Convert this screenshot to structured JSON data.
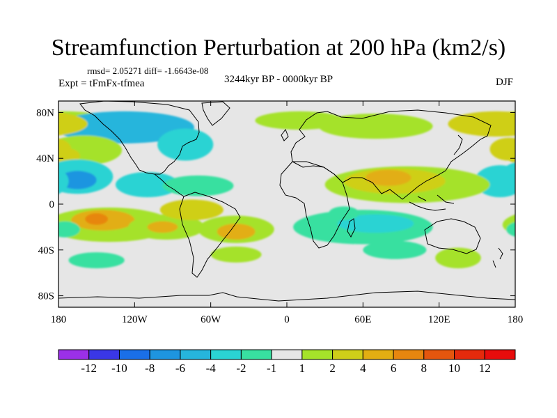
{
  "title": "Streamfunction Perturbation at 200 hPa (km2/s)",
  "stats": "rmsd= 2.05271 diff= -1.6643e-08",
  "experiment": "Expt = tFmFx-tfmea",
  "period": "3244kyr BP - 0000kyr BP",
  "season": "DJF",
  "lat_labels": [
    "80N",
    "40N",
    "0",
    "40S",
    "80S"
  ],
  "lon_labels": [
    "180",
    "120W",
    "60W",
    "0",
    "60E",
    "120E",
    "180"
  ],
  "colorbar": {
    "labels": [
      "-12",
      "-10",
      "-8",
      "-6",
      "-4",
      "-2",
      "-1",
      "1",
      "2",
      "4",
      "6",
      "8",
      "10",
      "12"
    ],
    "colors": [
      "#9b30e8",
      "#3a37e6",
      "#1a6fe8",
      "#1e95e0",
      "#26b5dc",
      "#2ad3d3",
      "#38e0a0",
      "#e6e6e6",
      "#a5e22a",
      "#cfcf19",
      "#e2ae12",
      "#e7860f",
      "#e5560e",
      "#e52a0c",
      "#e80c0c"
    ]
  },
  "anomalies": [
    {
      "lon": -175,
      "lat": 72,
      "rx": 38,
      "ry": 9,
      "level": 8
    },
    {
      "lon": -128,
      "lat": 67,
      "rx": 55,
      "ry": 14,
      "level": 4
    },
    {
      "lon": -80,
      "lat": 52,
      "rx": 22,
      "ry": 14,
      "level": 5
    },
    {
      "lon": -160,
      "lat": 47,
      "rx": 30,
      "ry": 13,
      "level": 8
    },
    {
      "lon": -175,
      "lat": 42,
      "rx": 12,
      "ry": 7,
      "level": 9
    },
    {
      "lon": -165,
      "lat": 24,
      "rx": 28,
      "ry": 15,
      "level": 5
    },
    {
      "lon": -165,
      "lat": 21,
      "rx": 15,
      "ry": 8,
      "level": 3
    },
    {
      "lon": -110,
      "lat": 17,
      "rx": 25,
      "ry": 11,
      "level": 5
    },
    {
      "lon": -70,
      "lat": 16,
      "rx": 28,
      "ry": 9,
      "level": 6
    },
    {
      "lon": 10,
      "lat": 73,
      "rx": 35,
      "ry": 8,
      "level": 8
    },
    {
      "lon": 70,
      "lat": 68,
      "rx": 45,
      "ry": 11,
      "level": 8
    },
    {
      "lon": 165,
      "lat": 70,
      "rx": 38,
      "ry": 11,
      "level": 9
    },
    {
      "lon": 168,
      "lat": 20,
      "rx": 20,
      "ry": 14,
      "level": 5
    },
    {
      "lon": 175,
      "lat": 48,
      "rx": 15,
      "ry": 10,
      "level": 9
    },
    {
      "lon": 95,
      "lat": 17,
      "rx": 65,
      "ry": 16,
      "level": 8
    },
    {
      "lon": 85,
      "lat": 20,
      "rx": 40,
      "ry": 11,
      "level": 9
    },
    {
      "lon": 80,
      "lat": 23,
      "rx": 18,
      "ry": 7,
      "level": 10
    },
    {
      "lon": 60,
      "lat": -20,
      "rx": 55,
      "ry": 15,
      "level": 6
    },
    {
      "lon": 70,
      "lat": -17,
      "rx": 30,
      "ry": 8,
      "level": 5
    },
    {
      "lon": 85,
      "lat": -40,
      "rx": 25,
      "ry": 8,
      "level": 6
    },
    {
      "lon": 45,
      "lat": -8,
      "rx": 12,
      "ry": 6,
      "level": 6
    },
    {
      "lon": 135,
      "lat": -47,
      "rx": 18,
      "ry": 9,
      "level": 8
    },
    {
      "lon": -140,
      "lat": -18,
      "rx": 50,
      "ry": 15,
      "level": 8
    },
    {
      "lon": -145,
      "lat": -14,
      "rx": 25,
      "ry": 9,
      "level": 10
    },
    {
      "lon": -150,
      "lat": -13,
      "rx": 9,
      "ry": 5,
      "level": 11
    },
    {
      "lon": -95,
      "lat": -20,
      "rx": 30,
      "ry": 11,
      "level": 8
    },
    {
      "lon": -98,
      "lat": -20,
      "rx": 12,
      "ry": 5,
      "level": 10
    },
    {
      "lon": -75,
      "lat": -5,
      "rx": 25,
      "ry": 9,
      "level": 9
    },
    {
      "lon": -40,
      "lat": -22,
      "rx": 30,
      "ry": 12,
      "level": 8
    },
    {
      "lon": -40,
      "lat": -24,
      "rx": 15,
      "ry": 7,
      "level": 10
    },
    {
      "lon": -40,
      "lat": -44,
      "rx": 20,
      "ry": 7,
      "level": 8
    },
    {
      "lon": -150,
      "lat": -49,
      "rx": 22,
      "ry": 7,
      "level": 6
    },
    {
      "lon": -175,
      "lat": -22,
      "rx": 12,
      "ry": 7,
      "level": 6
    }
  ]
}
